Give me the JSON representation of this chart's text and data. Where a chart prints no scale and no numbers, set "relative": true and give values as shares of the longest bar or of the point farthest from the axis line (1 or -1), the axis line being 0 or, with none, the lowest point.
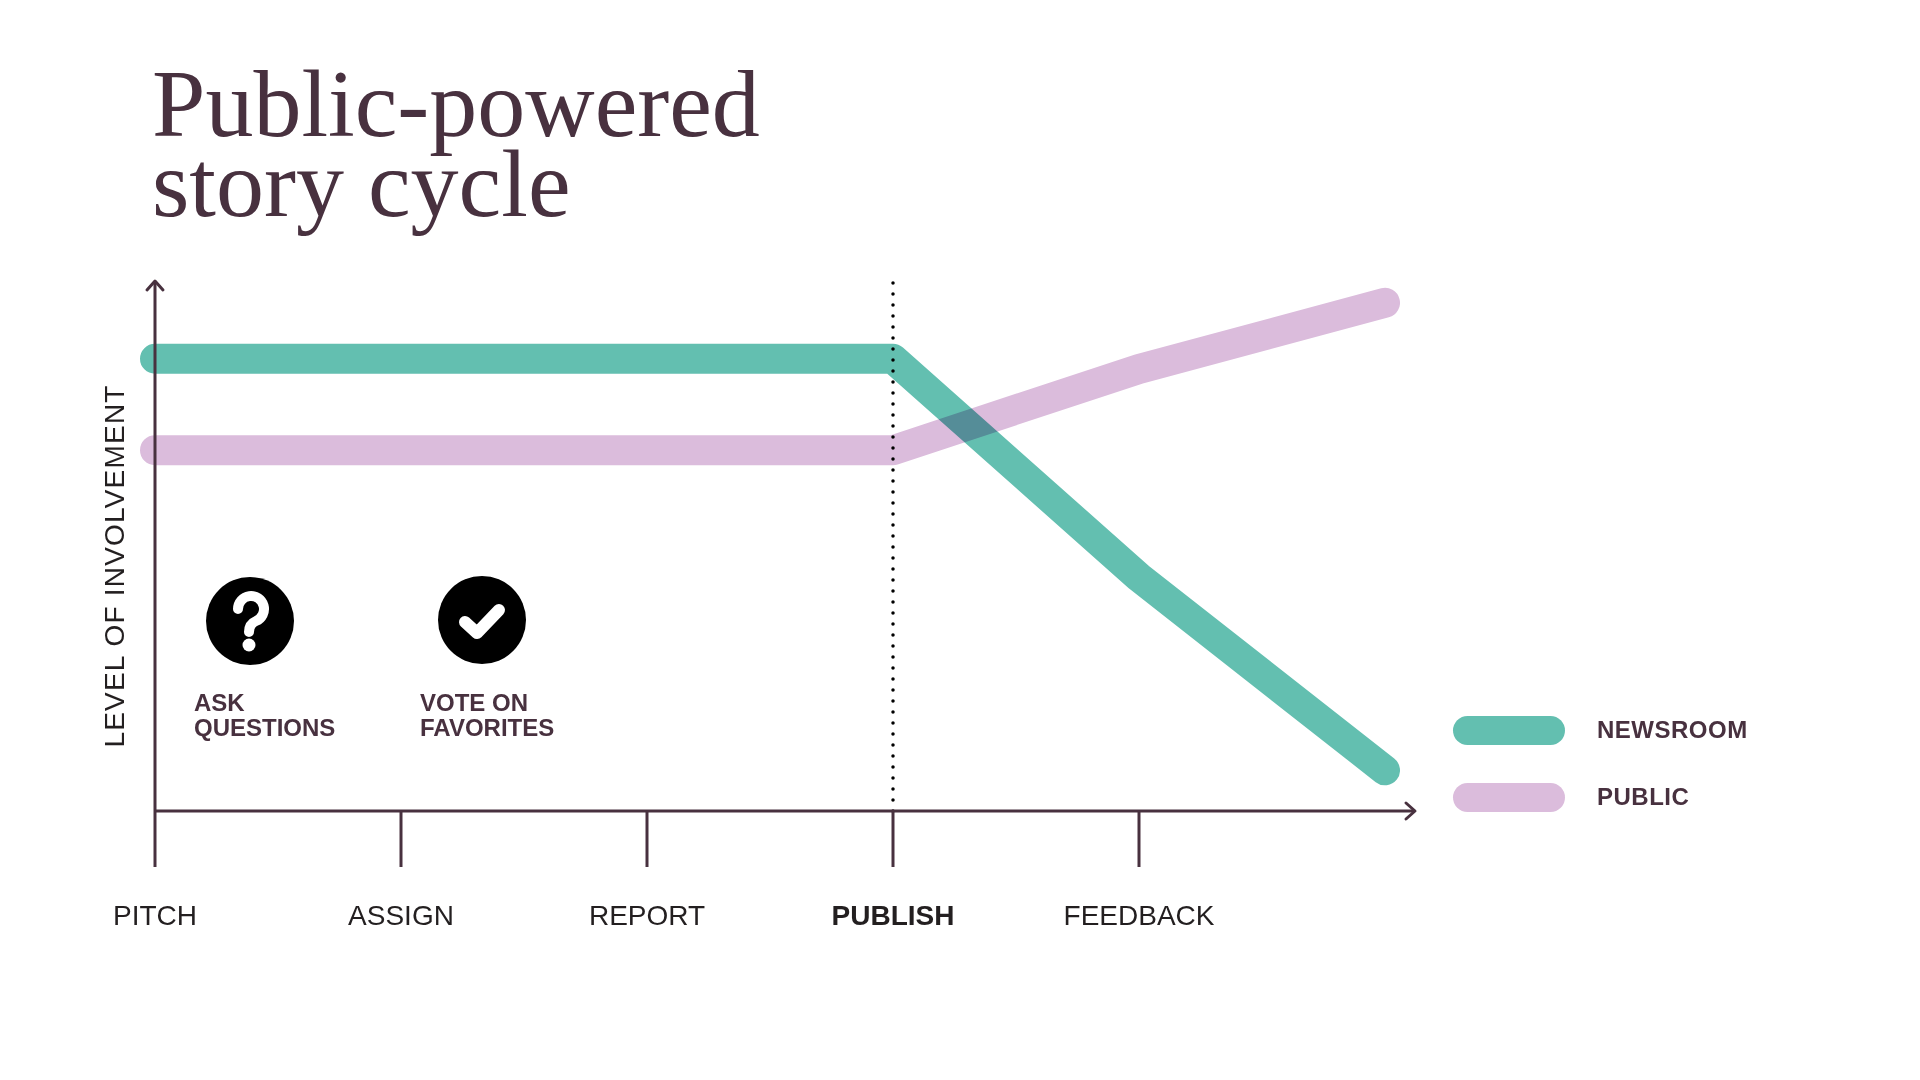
{
  "chart_data": {
    "type": "line",
    "title": "Public-powered story cycle",
    "ylabel": "LEVEL OF INVOLVEMENT",
    "relative": true,
    "categories": [
      "PITCH",
      "ASSIGN",
      "REPORT",
      "PUBLISH",
      "FEEDBACK",
      null
    ],
    "series": [
      {
        "name": "NEWSROOM",
        "color": "#63bfb0",
        "values": [
          0.89,
          0.89,
          0.89,
          0.89,
          0.46,
          0.08
        ]
      },
      {
        "name": "PUBLIC",
        "color": "#dbbcdc",
        "values": [
          0.71,
          0.71,
          0.71,
          0.71,
          0.87,
          1
        ]
      }
    ],
    "ref_lines": [
      {
        "axis": "x",
        "value": "PUBLISH",
        "color": "#000000",
        "line_style": "dotted"
      }
    ],
    "annotations": [
      "ASK QUESTIONS",
      "VOTE ON FAVORITES"
    ],
    "legend": "bottom right"
  }
}
